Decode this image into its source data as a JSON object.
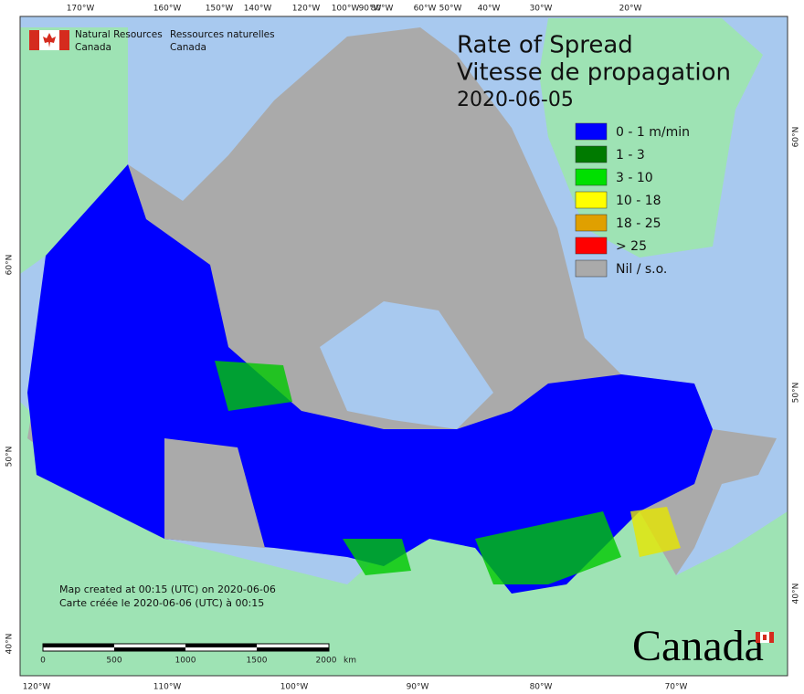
{
  "header": {
    "org_en": [
      "Natural Resources",
      "Canada"
    ],
    "org_fr": [
      "Ressources naturelles",
      "Canada"
    ]
  },
  "title": [
    "Rate of Spread",
    "Vitesse de propagation",
    "2020-06-05"
  ],
  "legend": [
    {
      "label": "0 - 1 m/min",
      "color": "#0000ff"
    },
    {
      "label": "1 - 3",
      "color": "#007a00"
    },
    {
      "label": "3 - 10",
      "color": "#00e000"
    },
    {
      "label": "10 - 18",
      "color": "#ffff00"
    },
    {
      "label": "18 - 25",
      "color": "#e0a000"
    },
    {
      "label": "> 25",
      "color": "#ff0000"
    },
    {
      "label": "Nil / s.o.",
      "color": "#aaaaaa"
    }
  ],
  "graticule": {
    "top": [
      "170°W",
      "160°W",
      "150°W",
      "140°W",
      "120°W",
      "100°W",
      "90°W",
      "80°W",
      "60°W",
      "50°W",
      "40°W",
      "30°W",
      "20°W"
    ],
    "bottom": [
      "120°W",
      "110°W",
      "100°W",
      "90°W",
      "80°W",
      "70°W"
    ],
    "left": [
      "60°N",
      "50°N",
      "40°N"
    ],
    "right": [
      "60°N",
      "50°N",
      "40°N"
    ]
  },
  "notes": [
    "Map created at 00:15 (UTC) on 2020-06-06",
    "Carte créée le 2020-06-06 (UTC) à 00:15"
  ],
  "scale_bar": {
    "labels": [
      "0",
      "500",
      "1000",
      "1500",
      "2000"
    ],
    "unit": "km"
  },
  "wordmark": "Canada"
}
